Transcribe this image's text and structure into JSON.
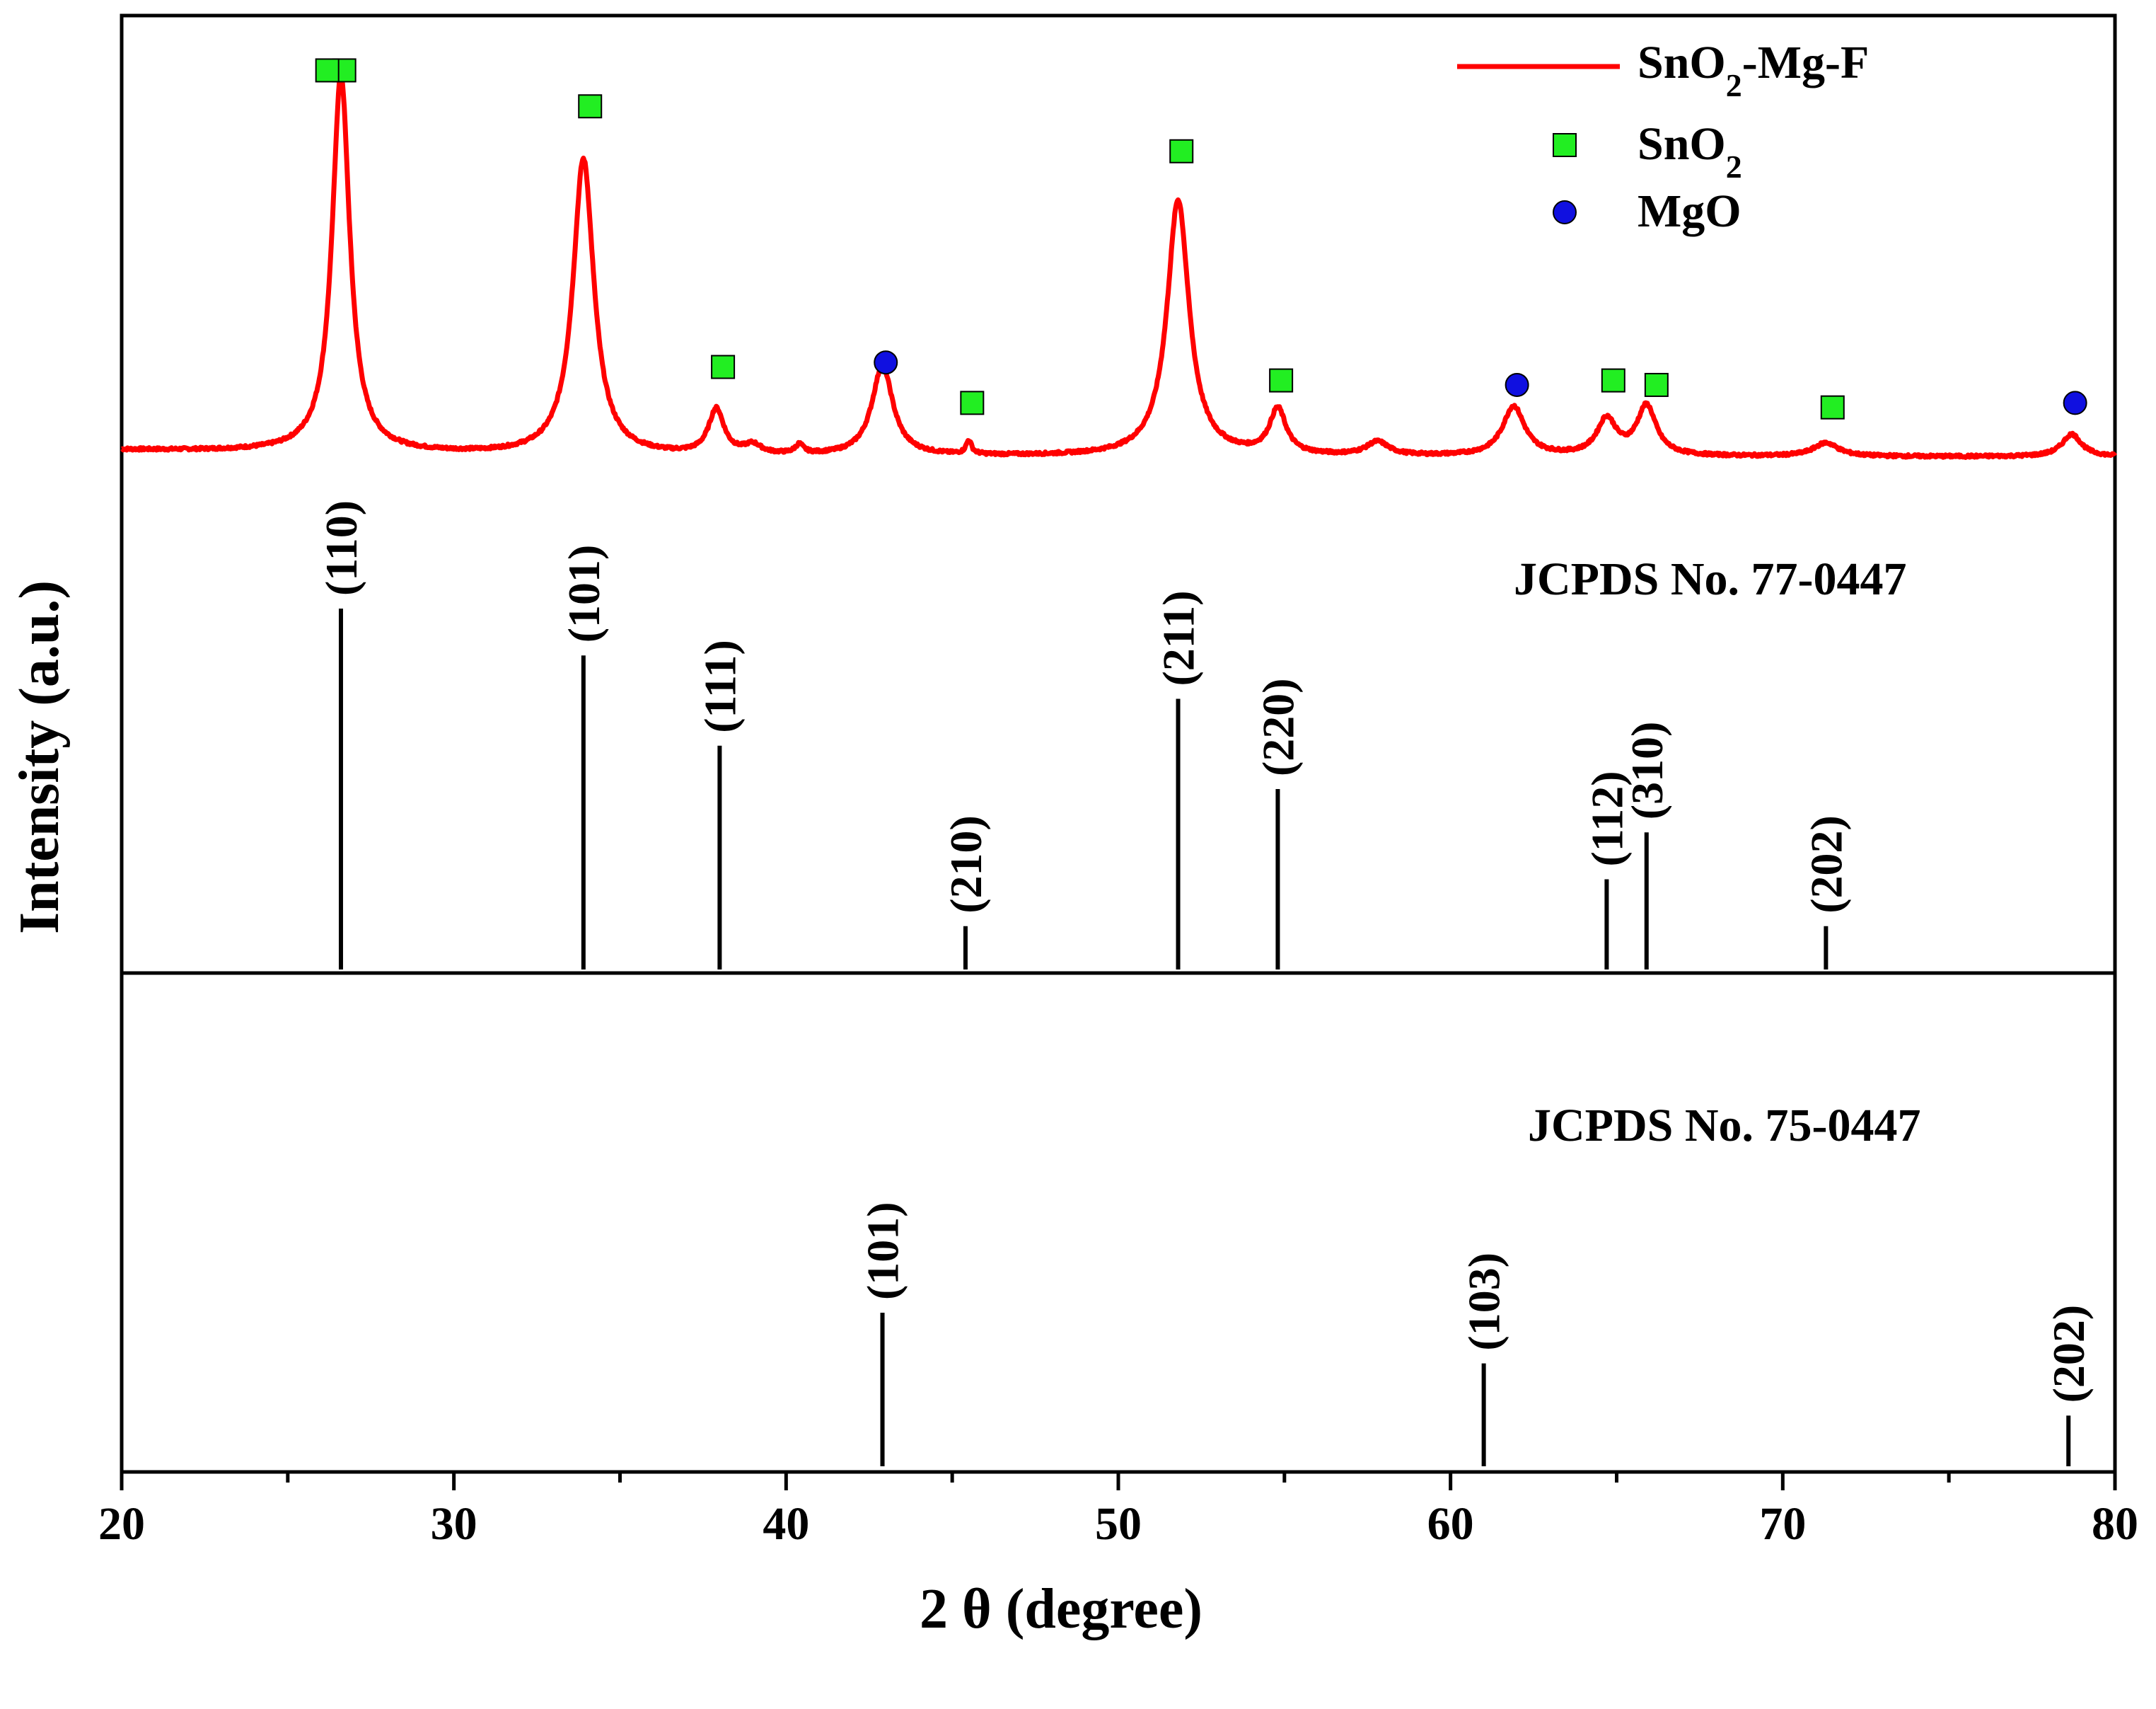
{
  "chart_data": {
    "type": "line",
    "title": "",
    "xlabel": "2 θ (degree)",
    "ylabel": "Intensity (a.u.)",
    "xlim": [
      20,
      80
    ],
    "xticks": [
      20,
      30,
      40,
      50,
      60,
      70,
      80
    ],
    "ylim": [
      0,
      1
    ],
    "grid": false,
    "legend": {
      "position": "top-right",
      "entries": [
        {
          "name": "SnO2-Mg-F",
          "base": "SnO",
          "sub": "2",
          "suffix": "-Mg-F",
          "marker": "line",
          "color": "#ff0000"
        },
        {
          "name": "SnO2",
          "base": "SnO",
          "sub": "2",
          "suffix": "",
          "marker": "square",
          "color": "#22ee22"
        },
        {
          "name": "MgO",
          "base": "MgO",
          "sub": "",
          "suffix": "",
          "marker": "circle",
          "color": "#1010e0"
        }
      ]
    },
    "series": [
      {
        "name": "SnO2-Mg-F",
        "color": "#ff0000",
        "baseline": 0.07,
        "noise": 0.006,
        "peaks": [
          {
            "x": 26.6,
            "height": 0.84,
            "width": 0.32
          },
          {
            "x": 33.9,
            "height": 0.66,
            "width": 0.38
          },
          {
            "x": 37.9,
            "height": 0.1,
            "width": 0.28
          },
          {
            "x": 39.0,
            "height": 0.02,
            "width": 0.3
          },
          {
            "x": 40.4,
            "height": 0.02,
            "width": 0.15
          },
          {
            "x": 42.9,
            "height": 0.2,
            "width": 0.38
          },
          {
            "x": 45.5,
            "height": 0.03,
            "width": 0.1
          },
          {
            "x": 51.8,
            "height": 0.57,
            "width": 0.4
          },
          {
            "x": 54.8,
            "height": 0.1,
            "width": 0.3
          },
          {
            "x": 57.8,
            "height": 0.03,
            "width": 0.4
          },
          {
            "x": 61.9,
            "height": 0.11,
            "width": 0.4
          },
          {
            "x": 64.7,
            "height": 0.08,
            "width": 0.35
          },
          {
            "x": 65.9,
            "height": 0.11,
            "width": 0.35
          },
          {
            "x": 71.3,
            "height": 0.03,
            "width": 0.45
          },
          {
            "x": 78.7,
            "height": 0.05,
            "width": 0.35
          }
        ]
      }
    ],
    "phase_markers": [
      {
        "phase": "SnO2",
        "x": 26.7,
        "y": 0.93
      },
      {
        "phase": "SnO2",
        "x": 34.1,
        "y": 0.85
      },
      {
        "phase": "SnO2",
        "x": 38.1,
        "y": 0.27
      },
      {
        "phase": "MgO",
        "x": 43.0,
        "y": 0.28
      },
      {
        "phase": "SnO2",
        "x": 45.6,
        "y": 0.19
      },
      {
        "phase": "SnO2",
        "x": 51.9,
        "y": 0.75
      },
      {
        "phase": "SnO2",
        "x": 54.9,
        "y": 0.24
      },
      {
        "phase": "MgO",
        "x": 62.0,
        "y": 0.23
      },
      {
        "phase": "SnO2",
        "x": 64.9,
        "y": 0.24
      },
      {
        "phase": "SnO2",
        "x": 66.2,
        "y": 0.23
      },
      {
        "phase": "SnO2",
        "x": 71.5,
        "y": 0.18
      },
      {
        "phase": "MgO",
        "x": 78.8,
        "y": 0.19
      }
    ],
    "references": [
      {
        "name": "JCPDS No. 77-0447",
        "lines": [
          {
            "x": 26.6,
            "intensity": 100,
            "hkl": "(110)"
          },
          {
            "x": 33.9,
            "intensity": 87,
            "hkl": "(101)"
          },
          {
            "x": 38.0,
            "intensity": 62,
            "hkl": "(111)"
          },
          {
            "x": 45.4,
            "intensity": 12,
            "hkl": "(210)"
          },
          {
            "x": 51.8,
            "intensity": 75,
            "hkl": "(211)"
          },
          {
            "x": 54.8,
            "intensity": 50,
            "hkl": "(220)"
          },
          {
            "x": 64.7,
            "intensity": 25,
            "hkl": "(112)"
          },
          {
            "x": 65.9,
            "intensity": 38,
            "hkl": "(310)"
          },
          {
            "x": 71.3,
            "intensity": 12,
            "hkl": "(202)"
          }
        ]
      },
      {
        "name": "JCPDS No. 75-0447",
        "lines": [
          {
            "x": 42.9,
            "intensity": 100,
            "hkl": "(101)"
          },
          {
            "x": 61.0,
            "intensity": 67,
            "hkl": "(103)"
          },
          {
            "x": 78.6,
            "intensity": 33,
            "hkl": "(202)"
          }
        ]
      }
    ]
  }
}
